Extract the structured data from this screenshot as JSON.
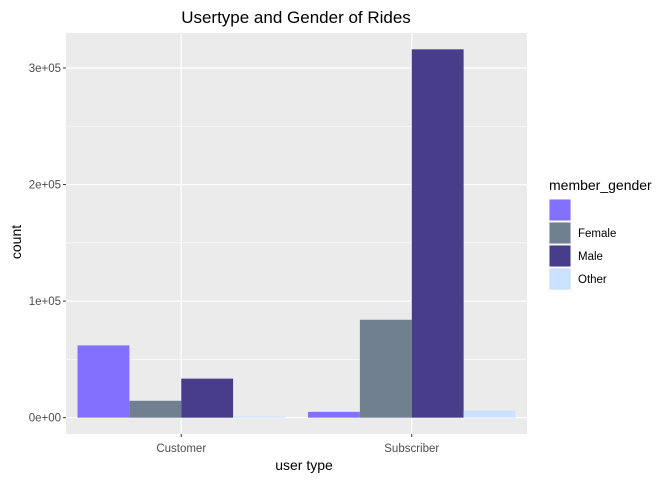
{
  "chart_data": {
    "type": "bar",
    "title": "Usertype and Gender of Rides",
    "xlabel": "user type",
    "ylabel": "count",
    "categories": [
      "Customer",
      "Subscriber"
    ],
    "series": [
      {
        "name": "",
        "color": "#8470ff",
        "values": [
          62000,
          5000
        ]
      },
      {
        "name": "Female",
        "color": "#708090",
        "values": [
          14500,
          84000
        ]
      },
      {
        "name": "Male",
        "color": "#483d8b",
        "values": [
          33500,
          316000
        ]
      },
      {
        "name": "Other",
        "color": "#cae1ff",
        "values": [
          1000,
          6000
        ]
      }
    ],
    "ylim": [
      -14000,
      330000
    ],
    "yticks": [
      0,
      100000,
      200000,
      300000
    ],
    "ytick_labels": [
      "0e+00",
      "1e+05",
      "2e+05",
      "3e+05"
    ],
    "legend_title": "member_gender",
    "legend_position": "right",
    "grid": true,
    "panel_background": "#ebebeb"
  }
}
